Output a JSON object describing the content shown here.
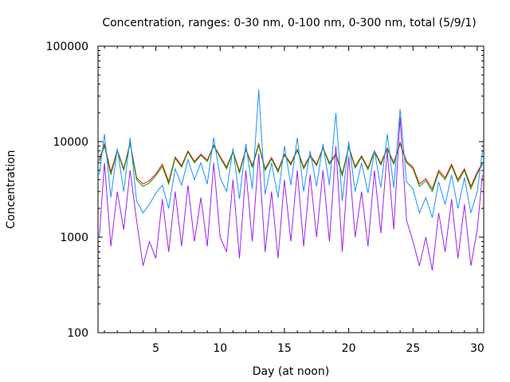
{
  "chart_data": {
    "type": "line",
    "title": "Concentration, ranges: 0-30 nm, 0-100 nm, 0-300 nm, total (5/9/1)",
    "xlabel": "Day (at noon)",
    "ylabel": "Concentration",
    "xlim": [
      0.5,
      30.5
    ],
    "ylim": [
      100,
      100000
    ],
    "yscale": "log",
    "x_ticks": [
      5,
      10,
      15,
      20,
      25,
      30
    ],
    "x_tick_labels": [
      "5",
      "10",
      "15",
      "20",
      "25",
      "30"
    ],
    "y_ticks": [
      100,
      1000,
      10000,
      100000
    ],
    "y_tick_labels": [
      "100",
      "1000",
      "10000",
      "100000"
    ],
    "grid": false,
    "legend": "none",
    "series": [
      {
        "color": "#ff0000",
        "x": [
          0.6,
          1.0,
          1.5,
          2.0,
          2.5,
          3.0,
          3.5,
          4.0,
          4.5,
          5.0,
          5.5,
          6.0,
          6.5,
          7.0,
          7.5,
          8.0,
          8.5,
          9.0,
          9.5,
          10.0,
          10.5,
          11.0,
          11.5,
          12.0,
          12.5,
          13.0,
          13.5,
          14.0,
          14.5,
          15.0,
          15.5,
          16.0,
          16.5,
          17.0,
          17.5,
          18.0,
          18.5,
          19.0,
          19.5,
          20.0,
          20.5,
          21.0,
          21.5,
          22.0,
          22.5,
          23.0,
          23.5,
          24.0,
          24.5,
          25.0,
          25.5,
          26.0,
          26.5,
          27.0,
          27.5,
          28.0,
          28.5,
          29.0,
          29.5,
          30.0,
          30.4
        ],
        "y": [
          6500,
          9500,
          4800,
          8200,
          5200,
          9800,
          4200,
          3600,
          3900,
          4600,
          5800,
          3800,
          6900,
          5600,
          8000,
          6200,
          7400,
          6400,
          9200,
          7000,
          5400,
          7900,
          4900,
          8400,
          5600,
          9500,
          5200,
          6800,
          5000,
          7400,
          5900,
          8300,
          5400,
          7200,
          5800,
          8700,
          6000,
          7500,
          4600,
          8900,
          5500,
          7100,
          5300,
          8000,
          5900,
          8600,
          6000,
          9800,
          6200,
          5400,
          3600,
          4100,
          3200,
          5000,
          4200,
          5800,
          4000,
          5200,
          3400,
          4800,
          6000
        ]
      },
      {
        "color": "#00a000",
        "x": [
          0.6,
          1.0,
          1.5,
          2.0,
          2.5,
          3.0,
          3.5,
          4.0,
          4.5,
          5.0,
          5.5,
          6.0,
          6.5,
          7.0,
          7.5,
          8.0,
          8.5,
          9.0,
          9.5,
          10.0,
          10.5,
          11.0,
          11.5,
          12.0,
          12.5,
          13.0,
          13.5,
          14.0,
          14.5,
          15.0,
          15.5,
          16.0,
          16.5,
          17.0,
          17.5,
          18.0,
          18.5,
          19.0,
          19.5,
          20.0,
          20.5,
          21.0,
          21.5,
          22.0,
          22.5,
          23.0,
          23.5,
          24.0,
          24.5,
          25.0,
          25.5,
          26.0,
          26.5,
          27.0,
          27.5,
          28.0,
          28.5,
          29.0,
          29.5,
          30.0,
          30.4
        ],
        "y": [
          6200,
          9000,
          4500,
          8000,
          5000,
          9500,
          4000,
          3400,
          3700,
          4400,
          5500,
          3600,
          6700,
          5400,
          7800,
          6000,
          7200,
          6200,
          9000,
          6800,
          5200,
          7700,
          4700,
          8200,
          5400,
          9200,
          5000,
          6600,
          4800,
          7200,
          5700,
          8100,
          5200,
          7000,
          5600,
          8500,
          5800,
          7300,
          4400,
          8700,
          5300,
          6900,
          5100,
          7800,
          5700,
          8400,
          5800,
          9500,
          6000,
          5200,
          3400,
          3900,
          3000,
          4800,
          4000,
          5600,
          3800,
          5000,
          3200,
          4600,
          5800
        ]
      },
      {
        "color": "#1e90ff",
        "x": [
          0.6,
          1.0,
          1.5,
          2.0,
          2.5,
          3.0,
          3.5,
          4.0,
          4.5,
          5.0,
          5.5,
          6.0,
          6.5,
          7.0,
          7.5,
          8.0,
          8.5,
          9.0,
          9.5,
          10.0,
          10.5,
          11.0,
          11.5,
          12.0,
          12.5,
          13.0,
          13.5,
          14.0,
          14.5,
          15.0,
          15.5,
          16.0,
          16.5,
          17.0,
          17.5,
          18.0,
          18.5,
          19.0,
          19.5,
          20.0,
          20.5,
          21.0,
          21.5,
          22.0,
          22.5,
          23.0,
          23.5,
          24.0,
          24.5,
          25.0,
          25.5,
          26.0,
          26.5,
          27.0,
          27.5,
          28.0,
          28.5,
          29.0,
          29.5,
          30.0,
          30.4
        ],
        "y": [
          4500,
          12000,
          2600,
          8500,
          3000,
          11000,
          2400,
          1800,
          2200,
          2900,
          3500,
          2000,
          5200,
          3500,
          6500,
          4000,
          6000,
          3600,
          11000,
          4200,
          3000,
          8500,
          2500,
          9500,
          3200,
          35000,
          2800,
          6000,
          2600,
          9000,
          3500,
          11000,
          3000,
          8000,
          3400,
          9500,
          3500,
          20000,
          2400,
          10000,
          3000,
          6000,
          2900,
          8000,
          3300,
          12000,
          3300,
          22000,
          3800,
          3200,
          1800,
          2600,
          1600,
          3800,
          2200,
          4500,
          2000,
          4200,
          1800,
          3000,
          8000
        ]
      },
      {
        "color": "#a020f0",
        "x": [
          0.6,
          1.0,
          1.5,
          2.0,
          2.5,
          3.0,
          3.5,
          4.0,
          4.5,
          5.0,
          5.5,
          6.0,
          6.5,
          7.0,
          7.5,
          8.0,
          8.5,
          9.0,
          9.5,
          10.0,
          10.5,
          11.0,
          11.5,
          12.0,
          12.5,
          13.0,
          13.5,
          14.0,
          14.5,
          15.0,
          15.5,
          16.0,
          16.5,
          17.0,
          17.5,
          18.0,
          18.5,
          19.0,
          19.5,
          20.0,
          20.5,
          21.0,
          21.5,
          22.0,
          22.5,
          23.0,
          23.5,
          24.0,
          24.5,
          25.0,
          25.5,
          26.0,
          26.5,
          27.0,
          27.5,
          28.0,
          28.5,
          29.0,
          29.5,
          30.0,
          30.4
        ],
        "y": [
          1000,
          6000,
          800,
          3000,
          1200,
          5000,
          1500,
          500,
          900,
          600,
          2500,
          700,
          3000,
          800,
          3500,
          900,
          2600,
          800,
          6000,
          1000,
          700,
          4000,
          600,
          5000,
          900,
          7500,
          700,
          3000,
          600,
          4000,
          900,
          5000,
          800,
          4500,
          1000,
          5000,
          900,
          9000,
          700,
          7000,
          1000,
          3000,
          800,
          5000,
          1100,
          8000,
          1200,
          18000,
          1500,
          900,
          500,
          1000,
          450,
          1800,
          700,
          2500,
          600,
          2200,
          500,
          1200,
          4500
        ]
      }
    ]
  }
}
